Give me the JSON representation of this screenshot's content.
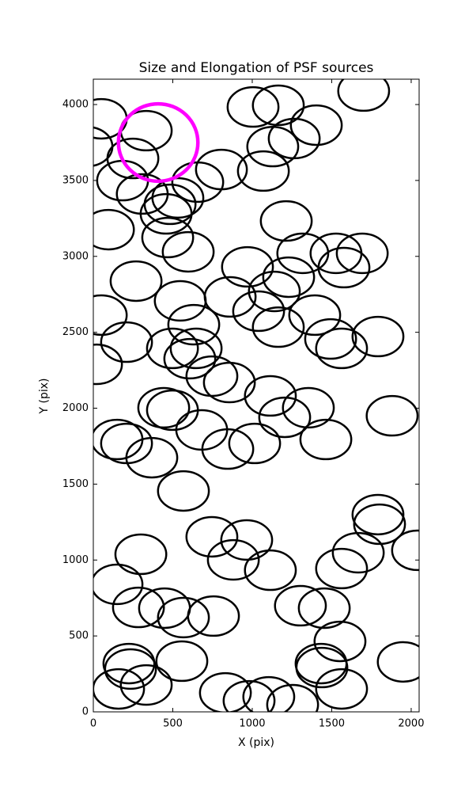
{
  "chart_data": {
    "type": "ellipse",
    "title": "Size and Elongation of PSF sources",
    "xlabel": "X (pix)",
    "ylabel": "Y (pix)",
    "xlim": [
      0,
      2050
    ],
    "ylim": [
      0,
      4167
    ],
    "xticks": [
      0,
      500,
      1000,
      1500,
      2000
    ],
    "yticks": [
      0,
      500,
      1000,
      1500,
      2000,
      2500,
      3000,
      3500,
      4000
    ],
    "series": [
      {
        "color": "#000000",
        "width": 320,
        "height": 260,
        "x": [
          50,
          333,
          -40,
          249,
          184,
          657,
          308,
          483,
          532,
          458,
          468,
          597,
          95,
          269,
          547,
          50,
          632,
          209,
          498,
          647,
          607,
          20,
          746,
          856,
          443,
          498,
          682,
          149,
          209,
          368,
          567,
          746,
          965,
          881,
          299,
          149,
          448,
          284,
          567,
          756,
          831,
          980,
          1104,
          1254,
          224,
          234,
          159,
          333,
          557,
          1303,
          1453,
          1433,
          1552,
          1438,
          1562,
          1950,
          1791,
          1801,
          2040,
          1667,
          1562,
          1114,
          1005,
          1164,
          1129,
          1264,
          1403,
          1070,
          806,
          1214,
          1318,
          1527,
          1692,
          1577,
          1229,
          970,
          1139,
          861,
          1040,
          1164,
          1393,
          1493,
          1562,
          1791,
          1114,
          1204,
          1353,
          1463,
          1880,
          1015,
          846,
          1701
        ],
        "y": [
          3906,
          3828,
          3723,
          3645,
          3499,
          3489,
          3411,
          3343,
          3385,
          3280,
          3124,
          3030,
          3176,
          2837,
          2707,
          2613,
          2550,
          2435,
          2394,
          2394,
          2326,
          2289,
          2211,
          2169,
          2003,
          1987,
          1857,
          1794,
          1768,
          1674,
          1455,
          1153,
          1132,
          1001,
          1038,
          840,
          683,
          688,
          621,
          631,
          125,
          73,
          99,
          47,
          318,
          282,
          151,
          177,
          334,
          699,
          683,
          318,
          464,
          292,
          151,
          329,
          1299,
          1236,
          1064,
          1048,
          944,
          933,
          3984,
          3995,
          3723,
          3776,
          3864,
          3562,
          3572,
          3233,
          3020,
          3020,
          3020,
          2926,
          2863,
          2931,
          2769,
          2733,
          2639,
          2534,
          2613,
          2456,
          2394,
          2472,
          2081,
          1940,
          2003,
          1794,
          1950,
          1768,
          1731,
          4089
        ]
      },
      {
        "color": "#ff00ff",
        "width": 500,
        "height": 510,
        "x": [
          408
        ],
        "y": [
          3750
        ]
      }
    ]
  }
}
